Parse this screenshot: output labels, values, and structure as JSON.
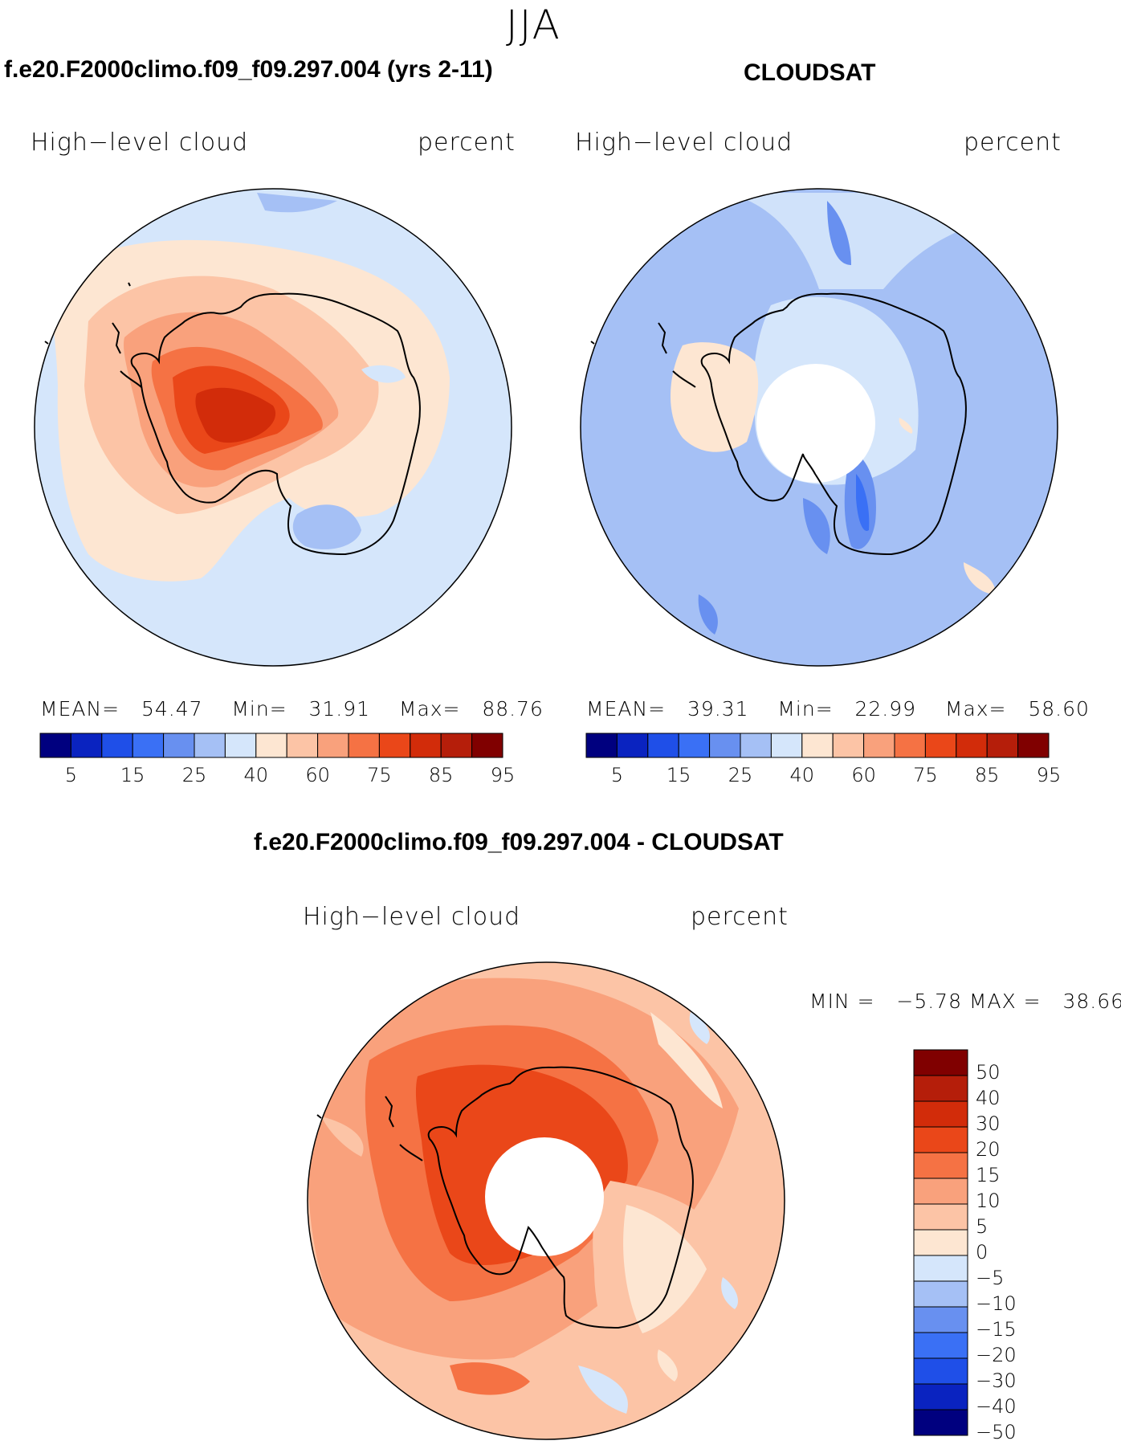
{
  "figure": {
    "season": "JJA"
  },
  "colors": {
    "abs_scale": [
      "#00007f",
      "#0a23c0",
      "#1f4fe8",
      "#3a70f5",
      "#6890f0",
      "#a5c0f5",
      "#d5e6fb",
      "#fde6d2",
      "#fcc4a6",
      "#f9a17c",
      "#f57244",
      "#ea4719",
      "#d22c0a",
      "#b51e0a",
      "#800000"
    ],
    "diff_scale": [
      "#800000",
      "#b51e0a",
      "#d22c0a",
      "#ea4719",
      "#f57244",
      "#f9a17c",
      "#fcc4a6",
      "#fde6d2",
      "#d5e6fb",
      "#a5c0f5",
      "#6890f0",
      "#3a70f5",
      "#1f4fe8",
      "#0a23c0",
      "#00007f"
    ]
  },
  "panels": [
    {
      "id": "model",
      "title": "f.e20.F2000climo.f09_f09.297.004 (yrs 2-11)",
      "variable": "High−level cloud",
      "units": "percent",
      "stats": {
        "mean_label": "MEAN=",
        "mean": "54.47",
        "min_label": "Min=",
        "min": "31.91",
        "max_label": "Max=",
        "max": "88.76"
      },
      "colorbar_ticks": [
        "5",
        "15",
        "25",
        "40",
        "60",
        "75",
        "85",
        "95"
      ]
    },
    {
      "id": "obs",
      "title": "CLOUDSAT",
      "variable": "High−level cloud",
      "units": "percent",
      "stats": {
        "mean_label": "MEAN=",
        "mean": "39.31",
        "min_label": "Min=",
        "min": "22.99",
        "max_label": "Max=",
        "max": "58.60"
      },
      "colorbar_ticks": [
        "5",
        "15",
        "25",
        "40",
        "60",
        "75",
        "85",
        "95"
      ]
    },
    {
      "id": "diff",
      "title": "f.e20.F2000climo.f09_f09.297.004 - CLOUDSAT",
      "variable": "High−level cloud",
      "units": "percent",
      "stats_text": "MIN =   −5.78 MAX =   38.66",
      "colorbar_ticks": [
        "50",
        "40",
        "30",
        "20",
        "15",
        "10",
        "5",
        "0",
        "−5",
        "−10",
        "−15",
        "−20",
        "−30",
        "−40",
        "−50"
      ]
    }
  ]
}
